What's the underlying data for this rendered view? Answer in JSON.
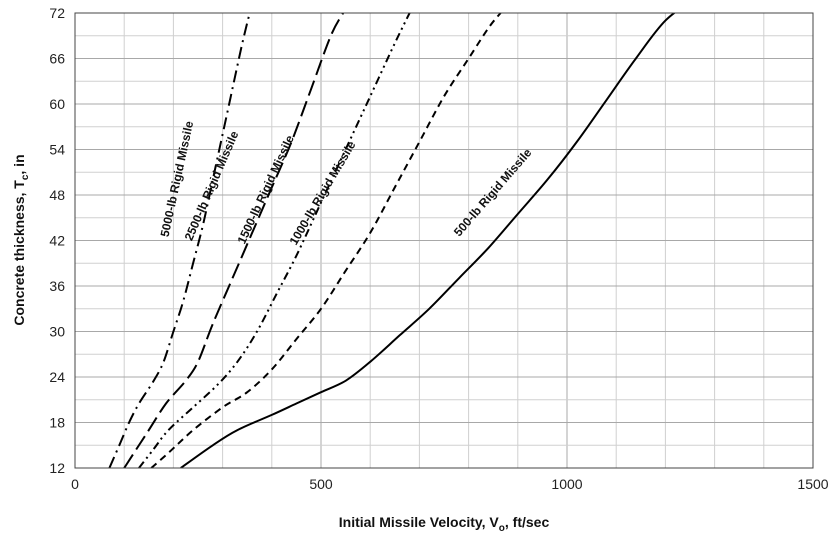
{
  "chart_data": {
    "type": "line",
    "xlabel_main": "Initial Missile Velocity, V",
    "xlabel_sub": "o",
    "xlabel_tail": ", ft/sec",
    "ylabel_main": "Concrete thickness, T",
    "ylabel_sub": "c",
    "ylabel_tail": ", in",
    "xlim": [
      0,
      1500
    ],
    "ylim": [
      12,
      72
    ],
    "x_ticks": [
      0,
      500,
      1000,
      1500
    ],
    "y_ticks": [
      12,
      18,
      24,
      30,
      36,
      42,
      48,
      54,
      60,
      66,
      72
    ],
    "x_minor_step": 100,
    "y_minor_step": 3,
    "grid": true,
    "legend": "none",
    "series": [
      {
        "name": "5000-lb Rigid Missile",
        "line_style": "dash-dot",
        "label_at": [
          215,
          50
        ],
        "points": [
          [
            70,
            12
          ],
          [
            90,
            15
          ],
          [
            110,
            18
          ],
          [
            130,
            20.5
          ],
          [
            160,
            23.5
          ],
          [
            180,
            26
          ],
          [
            200,
            30
          ],
          [
            220,
            34
          ],
          [
            240,
            39
          ],
          [
            260,
            44
          ],
          [
            280,
            50
          ],
          [
            300,
            56
          ],
          [
            320,
            62
          ],
          [
            340,
            68
          ],
          [
            355,
            72
          ]
        ]
      },
      {
        "name": "2500-lb Rigid Missile",
        "line_style": "long-dash",
        "label_at": [
          285,
          49
        ],
        "points": [
          [
            100,
            12
          ],
          [
            125,
            14.5
          ],
          [
            150,
            17
          ],
          [
            185,
            20.5
          ],
          [
            225,
            23.5
          ],
          [
            250,
            26
          ],
          [
            280,
            31
          ],
          [
            320,
            37
          ],
          [
            360,
            43
          ],
          [
            400,
            49
          ],
          [
            440,
            55
          ],
          [
            480,
            62
          ],
          [
            520,
            69
          ],
          [
            545,
            72
          ]
        ]
      },
      {
        "name": "1500-lb Rigid Missile",
        "line_style": "dash-dot-dot",
        "label_at": [
          395,
          48.5
        ],
        "points": [
          [
            130,
            12
          ],
          [
            160,
            14.5
          ],
          [
            190,
            17
          ],
          [
            240,
            20
          ],
          [
            290,
            23
          ],
          [
            330,
            26
          ],
          [
            370,
            30
          ],
          [
            410,
            35
          ],
          [
            450,
            40
          ],
          [
            500,
            47
          ],
          [
            550,
            54
          ],
          [
            600,
            61
          ],
          [
            650,
            68
          ],
          [
            680,
            72
          ]
        ]
      },
      {
        "name": "1000-lb Rigid Missile",
        "line_style": "short-dash",
        "label_at": [
          510,
          48
        ],
        "points": [
          [
            155,
            12
          ],
          [
            190,
            14
          ],
          [
            240,
            17
          ],
          [
            300,
            20
          ],
          [
            350,
            22
          ],
          [
            400,
            25
          ],
          [
            450,
            29
          ],
          [
            500,
            33
          ],
          [
            550,
            38
          ],
          [
            600,
            43
          ],
          [
            650,
            49
          ],
          [
            700,
            55
          ],
          [
            750,
            61
          ],
          [
            800,
            66
          ],
          [
            840,
            70
          ],
          [
            865,
            72
          ]
        ]
      },
      {
        "name": "500-lb Rigid Missile",
        "line_style": "solid",
        "label_at": [
          855,
          48
        ],
        "points": [
          [
            215,
            12
          ],
          [
            280,
            15
          ],
          [
            330,
            17
          ],
          [
            400,
            19
          ],
          [
            450,
            20.5
          ],
          [
            500,
            22
          ],
          [
            550,
            23.5
          ],
          [
            600,
            26
          ],
          [
            660,
            29.5
          ],
          [
            720,
            33
          ],
          [
            780,
            37
          ],
          [
            840,
            41
          ],
          [
            900,
            45.5
          ],
          [
            960,
            50
          ],
          [
            1020,
            55
          ],
          [
            1080,
            60.5
          ],
          [
            1140,
            66
          ],
          [
            1200,
            71
          ],
          [
            1262,
            74
          ]
        ]
      }
    ]
  }
}
